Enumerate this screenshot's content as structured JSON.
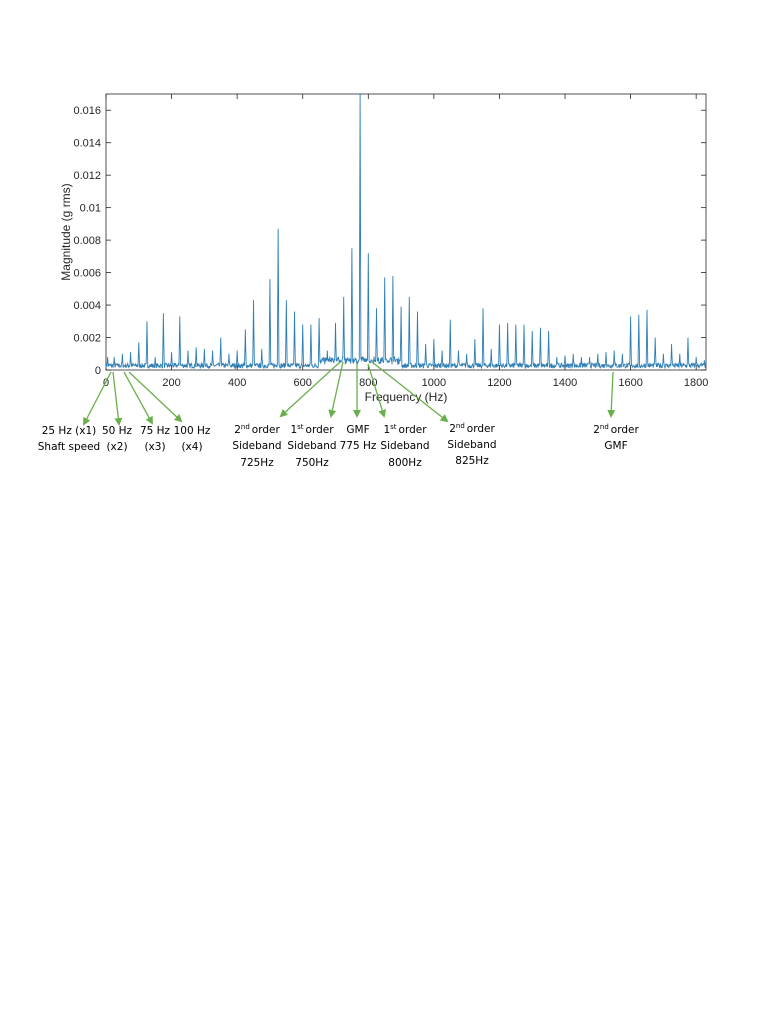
{
  "chart_data": {
    "type": "line",
    "title": "",
    "xlabel": "Frequency (Hz)",
    "ylabel": "Magnitude (g rms)",
    "xlim": [
      0,
      1830
    ],
    "ylim": [
      0,
      0.017
    ],
    "xticks": [
      0,
      200,
      400,
      600,
      800,
      1000,
      1200,
      1400,
      1600,
      1800
    ],
    "xtick_labels": [
      "0",
      "200",
      "400",
      "600",
      "800",
      "1000",
      "1200",
      "1400",
      "1600",
      "1800"
    ],
    "yticks": [
      0,
      0.002,
      0.004,
      0.006,
      0.008,
      0.01,
      0.012,
      0.014,
      0.016
    ],
    "ytick_labels": [
      "0",
      "0.002",
      "0.004",
      "0.006",
      "0.008",
      "0.01",
      "0.012",
      "0.014",
      "0.016"
    ],
    "grid": false,
    "series_color": "#2e7fb5",
    "peaks_hz": [
      5,
      25,
      50,
      75,
      100,
      125,
      150,
      175,
      200,
      225,
      250,
      275,
      300,
      325,
      350,
      375,
      400,
      425,
      450,
      475,
      500,
      525,
      550,
      575,
      600,
      625,
      650,
      675,
      700,
      725,
      750,
      775,
      800,
      825,
      850,
      875,
      900,
      925,
      950,
      975,
      1000,
      1025,
      1050,
      1075,
      1100,
      1125,
      1150,
      1175,
      1200,
      1225,
      1250,
      1275,
      1300,
      1325,
      1350,
      1375,
      1400,
      1425,
      1450,
      1475,
      1500,
      1525,
      1550,
      1575,
      1600,
      1625,
      1650,
      1675,
      1700,
      1725,
      1750,
      1775,
      1800,
      1825
    ],
    "peaks_g": [
      0.0008,
      0.0008,
      0.001,
      0.0011,
      0.0017,
      0.003,
      0.0008,
      0.0035,
      0.0011,
      0.0033,
      0.0012,
      0.0014,
      0.0013,
      0.0012,
      0.002,
      0.001,
      0.0012,
      0.0025,
      0.0043,
      0.0013,
      0.0056,
      0.0087,
      0.0043,
      0.0036,
      0.0028,
      0.0028,
      0.0032,
      0.0012,
      0.0029,
      0.0045,
      0.0075,
      0.017,
      0.0072,
      0.0038,
      0.0057,
      0.0058,
      0.0039,
      0.0045,
      0.0036,
      0.0016,
      0.0019,
      0.0012,
      0.0031,
      0.0012,
      0.001,
      0.0019,
      0.0038,
      0.0013,
      0.0028,
      0.0029,
      0.0028,
      0.0028,
      0.0024,
      0.0026,
      0.0024,
      0.0008,
      0.0009,
      0.001,
      0.0008,
      0.0008,
      0.001,
      0.0011,
      0.0012,
      0.001,
      0.0033,
      0.0034,
      0.0037,
      0.002,
      0.001,
      0.0016,
      0.001,
      0.002,
      0.0008,
      0.0006
    ]
  },
  "annotations": [
    {
      "lines": [
        "25 Hz (x1)",
        "Shaft speed"
      ]
    },
    {
      "lines": [
        "50 Hz",
        "(x2)"
      ]
    },
    {
      "lines": [
        "75 Hz",
        "(x3)"
      ]
    },
    {
      "lines": [
        "100 Hz",
        "(x4)"
      ]
    },
    {
      "order": "2",
      "sup": "nd",
      "first": "order",
      "lines": [
        "Sideband",
        "725Hz"
      ]
    },
    {
      "order": "1",
      "sup": "st",
      "first": "order",
      "lines": [
        "Sideband",
        "750Hz"
      ]
    },
    {
      "lines": [
        "GMF",
        "775 Hz"
      ]
    },
    {
      "order": "1",
      "sup": "st",
      "first": "order",
      "lines": [
        "Sideband",
        "800Hz"
      ]
    },
    {
      "order": "2",
      "sup": "nd",
      "first": "order",
      "lines": [
        "Sideband",
        "825Hz"
      ]
    },
    {
      "order": "2",
      "sup": "nd",
      "first": "order",
      "lines": [
        "GMF"
      ]
    }
  ],
  "arrow_color": "#6aaf4b"
}
